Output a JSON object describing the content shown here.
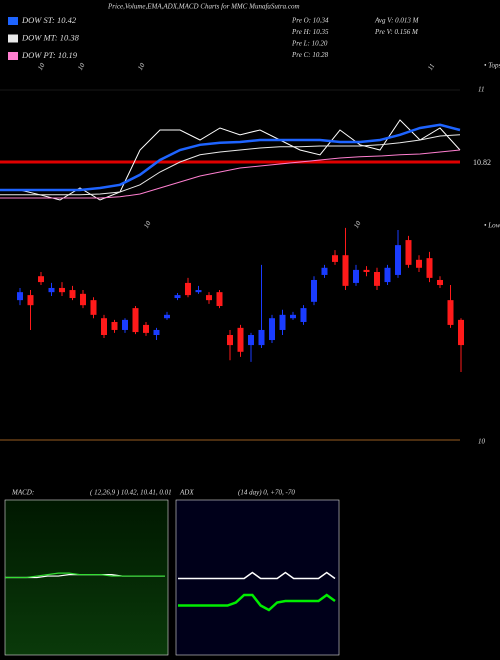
{
  "header": {
    "title": "Price,Volume,EMA,ADX,MACD Charts for MMC MunafaSutra.com",
    "info": [
      [
        "Pre  O: 10.34",
        "Avg V: 0.013  M"
      ],
      [
        "Pre  H: 10.35",
        "Pre  V: 0.156  M"
      ],
      [
        "Pre  L: 10.20"
      ],
      [
        "Pre  C: 10.28"
      ]
    ]
  },
  "chart_data": [
    {
      "type": "line",
      "ylim": [
        10.71,
        11
      ],
      "yticks": [
        11
      ],
      "hline": 10.82,
      "hline_color": "#e00000",
      "side_label": "• Tops",
      "xticks": [
        {
          "value": 2,
          "label": "10"
        },
        {
          "value": 4,
          "label": "10"
        },
        {
          "value": 7,
          "label": "10"
        },
        {
          "value": 21.5,
          "label": "11"
        }
      ],
      "series": [
        {
          "color": "#ffffff",
          "values": [
            10.75,
            10.75,
            10.738,
            10.725,
            10.755,
            10.725,
            10.745,
            10.85,
            10.9,
            10.9,
            10.875,
            10.905,
            10.888,
            10.9,
            10.875,
            10.85,
            10.838,
            10.9,
            10.863,
            10.85,
            10.925,
            10.875,
            10.905,
            10.85
          ]
        },
        {
          "name": "DOW ST: 10.42",
          "color": "#1e64ff",
          "values": [
            10.75,
            10.75,
            10.75,
            10.75,
            10.75,
            10.755,
            10.763,
            10.788,
            10.825,
            10.85,
            10.863,
            10.868,
            10.87,
            10.875,
            10.875,
            10.875,
            10.875,
            10.87,
            10.87,
            10.875,
            10.888,
            10.905,
            10.913,
            10.9
          ]
        },
        {
          "name": "DOW MT: 10.38",
          "color": "#e8e8e8",
          "values": [
            10.738,
            10.738,
            10.738,
            10.738,
            10.738,
            10.74,
            10.745,
            10.763,
            10.795,
            10.82,
            10.838,
            10.845,
            10.85,
            10.855,
            10.858,
            10.858,
            10.86,
            10.86,
            10.86,
            10.863,
            10.868,
            10.875,
            10.885,
            10.888
          ]
        },
        {
          "name": "DOW PT: 10.19",
          "color": "#ff7fd0",
          "values": [
            10.73,
            10.73,
            10.73,
            10.73,
            10.73,
            10.73,
            10.733,
            10.74,
            10.755,
            10.77,
            10.785,
            10.795,
            10.805,
            10.81,
            10.815,
            10.82,
            10.825,
            10.83,
            10.833,
            10.835,
            10.838,
            10.84,
            10.845,
            10.85
          ]
        }
      ]
    },
    {
      "type": "candlestick",
      "ylim": [
        10,
        10.5
      ],
      "yticks": [
        10
      ],
      "side_label": "• Lows",
      "up_color": "#1a3cff",
      "down_color": "#ff1a1a",
      "xticks": [
        {
          "value": 12,
          "label": "10"
        },
        {
          "value": 32,
          "label": "10"
        }
      ],
      "open": [
        10.333,
        10.345,
        10.39,
        10.352,
        10.362,
        10.357,
        10.348,
        10.333,
        10.29,
        10.281,
        10.262,
        10.314,
        10.274,
        10.25,
        10.29,
        10.338,
        10.374,
        10.352,
        10.345,
        10.352,
        10.25,
        10.267,
        10.226,
        10.226,
        10.238,
        10.262,
        10.29,
        10.281,
        10.329,
        10.393,
        10.44,
        10.44,
        10.374,
        10.405,
        10.4,
        10.376,
        10.393,
        10.476,
        10.429,
        10.433,
        10.381,
        10.333,
        10.286
      ],
      "close": [
        10.352,
        10.321,
        10.376,
        10.362,
        10.352,
        10.338,
        10.321,
        10.298,
        10.25,
        10.262,
        10.286,
        10.257,
        10.255,
        10.262,
        10.298,
        10.345,
        10.345,
        10.357,
        10.333,
        10.319,
        10.226,
        10.21,
        10.25,
        10.262,
        10.29,
        10.298,
        10.298,
        10.314,
        10.381,
        10.41,
        10.424,
        10.367,
        10.405,
        10.4,
        10.367,
        10.41,
        10.464,
        10.417,
        10.41,
        10.386,
        10.369,
        10.274,
        10.226
      ],
      "high": [
        10.362,
        10.357,
        10.4,
        10.374,
        10.376,
        10.367,
        10.357,
        10.34,
        10.298,
        10.286,
        10.29,
        10.319,
        10.281,
        10.267,
        10.305,
        10.35,
        10.386,
        10.367,
        10.352,
        10.357,
        10.262,
        10.274,
        10.255,
        10.417,
        10.298,
        10.31,
        10.305,
        10.321,
        10.39,
        10.417,
        10.452,
        10.505,
        10.417,
        10.414,
        10.41,
        10.417,
        10.5,
        10.486,
        10.44,
        10.448,
        10.39,
        10.369,
        10.29
      ],
      "low": [
        10.321,
        10.262,
        10.369,
        10.343,
        10.343,
        10.333,
        10.314,
        10.29,
        10.243,
        10.255,
        10.255,
        10.252,
        10.248,
        10.238,
        10.286,
        10.333,
        10.34,
        10.348,
        10.324,
        10.314,
        10.19,
        10.198,
        10.186,
        10.219,
        10.231,
        10.25,
        10.286,
        10.274,
        10.321,
        10.386,
        10.417,
        10.357,
        10.367,
        10.39,
        10.357,
        10.369,
        10.386,
        10.41,
        10.4,
        10.376,
        10.362,
        10.267,
        10.162
      ]
    },
    {
      "type": "macd",
      "label": "MACD:",
      "params": "( 12,26,9 ) 10.42, 10.41, 0.01",
      "ylim": [
        -0.5,
        0.5
      ],
      "series": [
        {
          "color": "#ffffff",
          "values": [
            0,
            0,
            0,
            0,
            0.01,
            0.01,
            0.02,
            0.02,
            0.02,
            0.02,
            0.02,
            0.01,
            0.01,
            0.01,
            0.01,
            0.01
          ]
        },
        {
          "color": "#33dd33",
          "values": [
            0,
            0,
            0,
            0.01,
            0.02,
            0.03,
            0.03,
            0.02,
            0.02,
            0.02,
            0.01,
            0.01,
            0.01,
            0.01,
            0.01,
            0.01
          ]
        }
      ]
    },
    {
      "type": "adx",
      "label": "ADX",
      "params": "(14  day) 0, +70, -70",
      "ylim": [
        0,
        100
      ],
      "series": [
        {
          "color": "#ffffff",
          "values": [
            51,
            51,
            51,
            51,
            51,
            51,
            51,
            51,
            51,
            55,
            51,
            51,
            51,
            55,
            51,
            51,
            51,
            51,
            55,
            51
          ]
        },
        {
          "color": "#00ee00",
          "values": [
            33,
            33,
            33,
            33,
            33,
            33,
            33,
            35,
            40,
            40,
            33,
            30,
            35,
            36,
            36,
            36,
            36,
            36,
            40,
            36
          ]
        }
      ]
    }
  ]
}
